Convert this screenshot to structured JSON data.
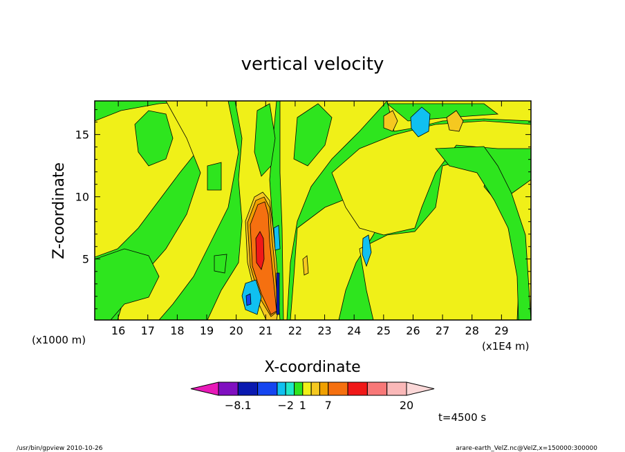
{
  "chart_data": {
    "type": "heatmap",
    "title": "vertical velocity",
    "xlabel": "X-coordinate",
    "ylabel": "Z-coordinate",
    "x_unit_label": "(x1E4 m)",
    "y_unit_label": "(x1000 m)",
    "x_range": [
      15.2,
      30.0
    ],
    "y_range": [
      0.1,
      17.7
    ],
    "x_ticks": [
      16,
      17,
      18,
      19,
      20,
      21,
      22,
      23,
      24,
      25,
      26,
      27,
      28,
      29
    ],
    "x_tick_labels": [
      "16",
      "17",
      "18",
      "19",
      "20",
      "21",
      "22",
      "23",
      "24",
      "25",
      "26",
      "27",
      "28",
      "29"
    ],
    "y_ticks": [
      5,
      10,
      15
    ],
    "y_tick_labels": [
      "5",
      "10",
      "15"
    ],
    "colorbar": {
      "colors": [
        "#e819b8",
        "#8010c0",
        "#0a19b0",
        "#1545f0",
        "#10c0f0",
        "#20e8c8",
        "#2ee51e",
        "#f0f018",
        "#f5c820",
        "#f0a000",
        "#f57010",
        "#f01818",
        "#f87878",
        "#fab8b8",
        "#fbd8d8"
      ],
      "labels": [
        {
          "text": "−8.1",
          "index": 1
        },
        {
          "text": "−2",
          "index": 4
        },
        {
          "text": "1",
          "index": 6
        },
        {
          "text": "7",
          "index": 9
        },
        {
          "text": "20",
          "index": 14
        }
      ]
    },
    "time_label": "t=4500 s",
    "footer_left": "/usr/bin/gpview  2010-10-26",
    "footer_right": "arare-earth_VelZ.nc@VelZ,x=150000:300000"
  }
}
